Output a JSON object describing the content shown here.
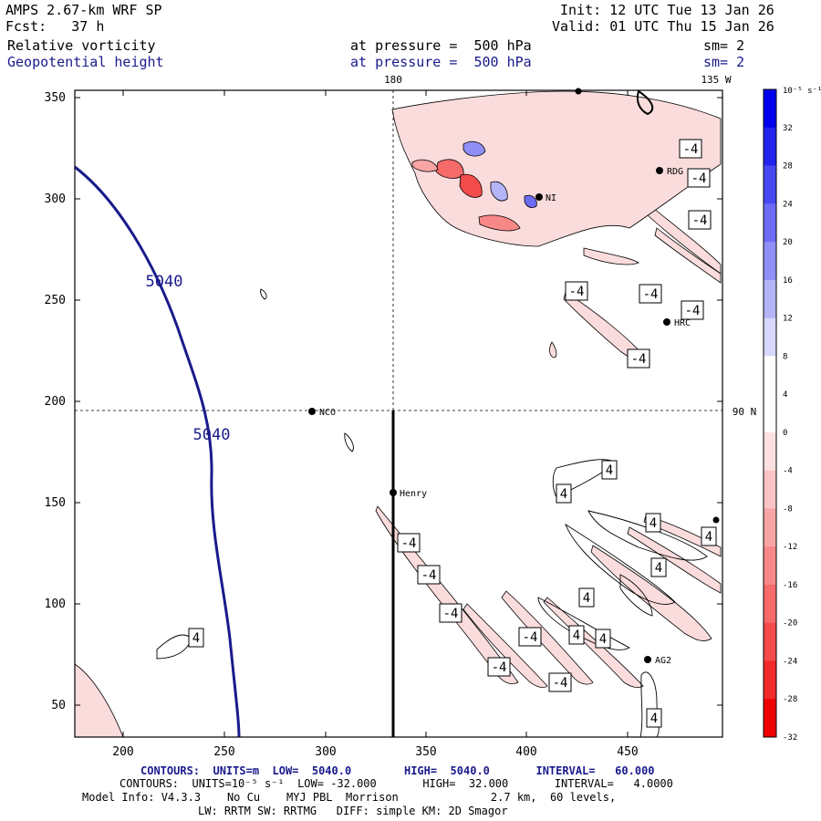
{
  "header": {
    "model": "AMPS 2.67-km WRF SP",
    "init": "Init: 12 UTC Tue 13 Jan 26",
    "fcst": "Fcst:   37 h",
    "valid": "Valid: 01 UTC Thu 15 Jan 26",
    "field1": "Relative vorticity",
    "field1_level": "at pressure =  500 hPa",
    "field1_sm": "sm= 2",
    "field2": "Geopotential height",
    "field2_level": "at pressure =  500 hPa",
    "field2_sm": "sm= 2"
  },
  "map": {
    "x_ticks": [
      "200",
      "250",
      "300",
      "350",
      "400",
      "450"
    ],
    "y_ticks": [
      "350",
      "300",
      "250",
      "200",
      "150",
      "100",
      "50"
    ],
    "lon_top_180": "180",
    "lon_top_135w": "135 W",
    "lat_right": "90 N",
    "stations": [
      "RDG",
      "HRC",
      "NCO",
      "Henry",
      "AG2",
      "NI"
    ],
    "height_labels": [
      "5040",
      "5040"
    ],
    "vort_labels": [
      "-4",
      "-4",
      "-4",
      "-4",
      "-4",
      "-4",
      "-4",
      "-4",
      "-4",
      "-4",
      "-4",
      "-4",
      "-4",
      "4",
      "4",
      "4",
      "4",
      "4",
      "4",
      "4",
      "4",
      "4",
      "4"
    ]
  },
  "colorbar": {
    "unit": "10⁻⁵ s⁻¹",
    "ticks": [
      "32",
      "28",
      "24",
      "20",
      "16",
      "12",
      "8",
      "4",
      "0",
      "-4",
      "-8",
      "-12",
      "-16",
      "-20",
      "-24",
      "-28",
      "-32"
    ],
    "colors": [
      "#0000ee",
      "#2323f0",
      "#4848f2",
      "#6c6cf4",
      "#8f8ff6",
      "#b4b4f9",
      "#d8d8fc",
      "#ffffff",
      "#ffffff",
      "#fde0e0",
      "#fcc4c4",
      "#faa5a5",
      "#f88888",
      "#f66a6a",
      "#f44b4b",
      "#f22a2a",
      "#ee0000"
    ]
  },
  "footer": {
    "line1": "CONTOURS:  UNITS=m  LOW=  5040.0        HIGH=  5040.0       INTERVAL=   60.000",
    "line2": "CONTOURS:  UNITS=10⁻⁵ s⁻¹  LOW= -32.000       HIGH=  32.000       INTERVAL=   4.0000",
    "line3": "Model Info: V4.3.3    No Cu    MYJ PBL  Morrison              2.7 km,  60 levels,",
    "line4": "LW: RRTM SW: RRTMG   DIFF: simple KM: 2D Smagor"
  }
}
